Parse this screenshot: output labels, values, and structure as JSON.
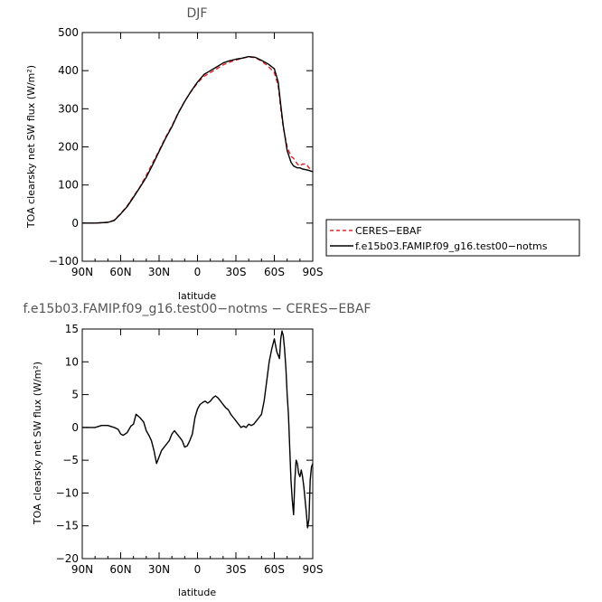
{
  "chart_data": [
    {
      "type": "line",
      "title": "DJF",
      "xlabel": "latitude",
      "ylabel": "TOA clearsky net SW flux (W/m²)",
      "ylim": [
        -100,
        500
      ],
      "yticks": [
        "500",
        "400",
        "300",
        "200",
        "100",
        "0",
        "−100"
      ],
      "ytick_values": [
        500,
        400,
        300,
        200,
        100,
        0,
        -100
      ],
      "xticks": [
        "90N",
        "60N",
        "30N",
        "0",
        "30S",
        "60S",
        "90S"
      ],
      "xtick_values": [
        90,
        60,
        30,
        0,
        -30,
        -60,
        -90
      ],
      "xlim": [
        90,
        -90
      ],
      "grid": false,
      "legend": "right",
      "series": [
        {
          "name": "CERES−EBAF",
          "color": "#e8202a",
          "dash": true,
          "x": [
            90,
            80,
            70,
            65,
            60,
            55,
            50,
            45,
            40,
            35,
            30,
            25,
            20,
            15,
            10,
            5,
            0,
            -5,
            -10,
            -15,
            -20,
            -25,
            -30,
            -35,
            -40,
            -45,
            -50,
            -55,
            -60,
            -63,
            -65,
            -67,
            -70,
            -73,
            -75,
            -78,
            -80,
            -82,
            -85,
            -87,
            -90
          ],
          "y": [
            0,
            0,
            2,
            8,
            25,
            45,
            70,
            95,
            125,
            158,
            190,
            225,
            255,
            290,
            320,
            345,
            368,
            385,
            395,
            405,
            415,
            422,
            428,
            433,
            436,
            434,
            425,
            412,
            395,
            360,
            300,
            250,
            200,
            175,
            170,
            155,
            150,
            155,
            155,
            145,
            140
          ]
        },
        {
          "name": "f.e15b03.FAMIP.f09_g16.test00−notms",
          "color": "#000000",
          "dash": false,
          "x": [
            90,
            80,
            70,
            65,
            60,
            55,
            50,
            45,
            40,
            35,
            30,
            25,
            20,
            15,
            10,
            5,
            0,
            -5,
            -10,
            -15,
            -20,
            -25,
            -30,
            -35,
            -40,
            -45,
            -50,
            -55,
            -60,
            -63,
            -65,
            -67,
            -70,
            -73,
            -75,
            -78,
            -80,
            -82,
            -85,
            -87,
            -90
          ],
          "y": [
            0,
            0,
            2,
            7,
            24,
            43,
            68,
            94,
            120,
            153,
            188,
            222,
            253,
            289,
            319,
            346,
            370,
            390,
            400,
            410,
            420,
            426,
            430,
            433,
            437,
            435,
            427,
            418,
            405,
            370,
            310,
            255,
            190,
            160,
            150,
            145,
            145,
            142,
            140,
            138,
            135
          ]
        }
      ]
    },
    {
      "type": "line",
      "title": "f.e15b03.FAMIP.f09_g16.test00−notms − CERES−EBAF",
      "xlabel": "latitude",
      "ylabel": "TOA clearsky net SW flux (W/m²)",
      "ylim": [
        -20,
        15
      ],
      "yticks": [
        "15",
        "10",
        "5",
        "0",
        "−5",
        "−10",
        "−15",
        "−20"
      ],
      "ytick_values": [
        15,
        10,
        5,
        0,
        -5,
        -10,
        -15,
        -20
      ],
      "xticks": [
        "90N",
        "60N",
        "30N",
        "0",
        "30S",
        "60S",
        "90S"
      ],
      "xtick_values": [
        90,
        60,
        30,
        0,
        -30,
        -60,
        -90
      ],
      "xlim": [
        90,
        -90
      ],
      "grid": false,
      "series": [
        {
          "color": "#000000",
          "dash": false,
          "x": [
            90,
            85,
            80,
            75,
            70,
            65,
            62,
            60,
            58,
            55,
            52,
            50,
            48,
            45,
            42,
            40,
            38,
            36,
            34,
            32,
            30,
            28,
            26,
            24,
            22,
            20,
            18,
            16,
            14,
            12,
            10,
            8,
            6,
            4,
            2,
            0,
            -2,
            -4,
            -6,
            -8,
            -10,
            -12,
            -14,
            -16,
            -18,
            -20,
            -22,
            -24,
            -26,
            -28,
            -30,
            -32,
            -34,
            -36,
            -38,
            -40,
            -42,
            -44,
            -46,
            -48,
            -50,
            -52,
            -54,
            -56,
            -58,
            -60,
            -62,
            -64,
            -65,
            -66,
            -67,
            -68,
            -69,
            -70,
            -71,
            -72,
            -73,
            -74,
            -75,
            -76,
            -77,
            -78,
            -79,
            -80,
            -81,
            -82,
            -83,
            -84,
            -85,
            -86,
            -87,
            -88,
            -89,
            -90
          ],
          "y": [
            0,
            0,
            0,
            0.3,
            0.3,
            0,
            -0.3,
            -1,
            -1.2,
            -0.8,
            0.2,
            0.5,
            2,
            1.5,
            0.8,
            -0.5,
            -1.2,
            -2,
            -3.5,
            -5.5,
            -4.5,
            -3.5,
            -3,
            -2.5,
            -2,
            -1,
            -0.5,
            -1,
            -1.5,
            -2,
            -3,
            -2.8,
            -2,
            -1,
            1.5,
            2.8,
            3.5,
            3.8,
            4,
            3.7,
            4,
            4.5,
            4.8,
            4.5,
            4,
            3.5,
            3,
            2.7,
            2,
            1.5,
            1,
            0.5,
            0,
            0.2,
            0,
            0.5,
            0.3,
            0.5,
            1,
            1.5,
            2,
            4,
            7,
            10,
            12,
            13.5,
            11.5,
            10.5,
            13.5,
            14.7,
            14,
            12,
            9,
            5,
            2,
            -3,
            -8,
            -11,
            -13.3,
            -8,
            -5,
            -5.5,
            -7,
            -7.5,
            -6.5,
            -7.5,
            -9,
            -11,
            -13,
            -15.3,
            -14,
            -8,
            -6,
            -5.5
          ]
        }
      ]
    }
  ]
}
